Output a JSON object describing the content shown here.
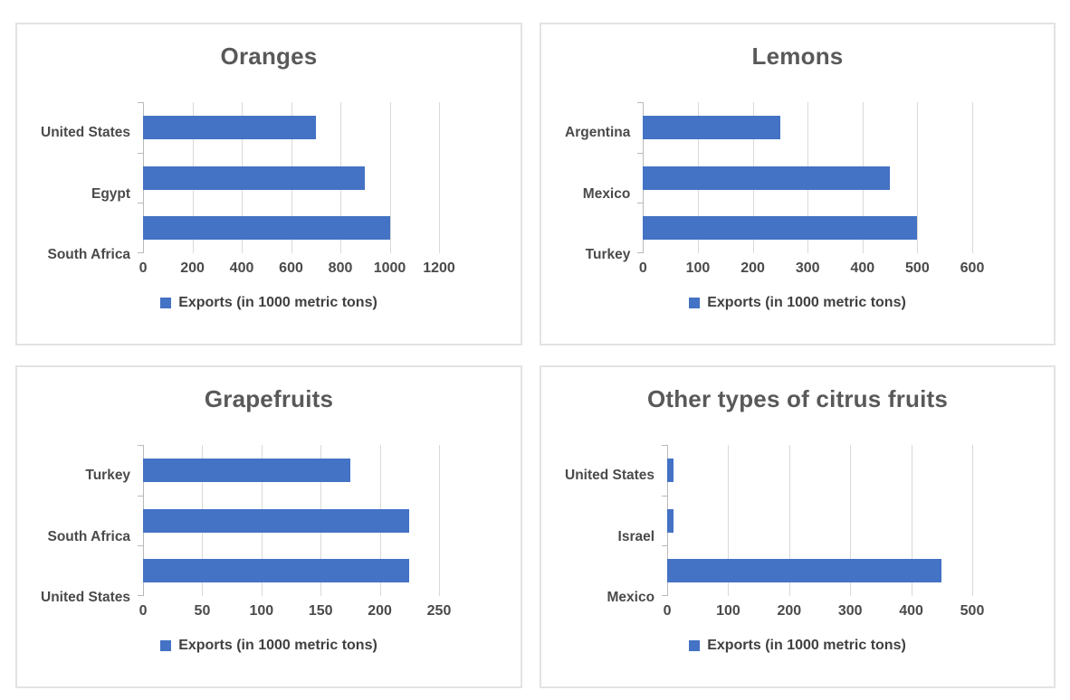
{
  "colors": {
    "bar": "#4472C4",
    "title_text": "#595959",
    "axis_text": "#4A4A4A",
    "legend_text": "#404040",
    "gridline": "#D9D9D9",
    "axis_line": "#B9B9B9",
    "panel_border": "#E3E3E3",
    "background": "#FFFFFF"
  },
  "chart_data": [
    {
      "type": "bar",
      "orientation": "horizontal",
      "title": "Oranges",
      "categories": [
        "United States",
        "Egypt",
        "South Africa"
      ],
      "values": [
        700,
        900,
        1000
      ],
      "series_name": "Exports (in 1000 metric tons)",
      "xlim": [
        0,
        1200
      ],
      "xticks": [
        0,
        200,
        400,
        600,
        800,
        1000,
        1200
      ],
      "grid": true,
      "legend_position": "bottom"
    },
    {
      "type": "bar",
      "orientation": "horizontal",
      "title": "Lemons",
      "categories": [
        "Argentina",
        "Mexico",
        "Turkey"
      ],
      "values": [
        250,
        450,
        500
      ],
      "series_name": "Exports (in 1000 metric tons)",
      "xlim": [
        0,
        600
      ],
      "xticks": [
        0,
        100,
        200,
        300,
        400,
        500,
        600
      ],
      "grid": true,
      "legend_position": "bottom"
    },
    {
      "type": "bar",
      "orientation": "horizontal",
      "title": "Grapefruits",
      "categories": [
        "Turkey",
        "South Africa",
        "United States"
      ],
      "values": [
        175,
        225,
        225
      ],
      "series_name": "Exports (in 1000 metric tons)",
      "xlim": [
        0,
        250
      ],
      "xticks": [
        0,
        50,
        100,
        150,
        200,
        250
      ],
      "grid": true,
      "legend_position": "bottom"
    },
    {
      "type": "bar",
      "orientation": "horizontal",
      "title": "Other types of citrus fruits",
      "categories": [
        "United States",
        "Israel",
        "Mexico"
      ],
      "values": [
        10,
        10,
        450
      ],
      "series_name": "Exports (in 1000 metric tons)",
      "xlim": [
        0,
        500
      ],
      "xticks": [
        0,
        100,
        200,
        300,
        400,
        500
      ],
      "grid": true,
      "legend_position": "bottom"
    }
  ]
}
